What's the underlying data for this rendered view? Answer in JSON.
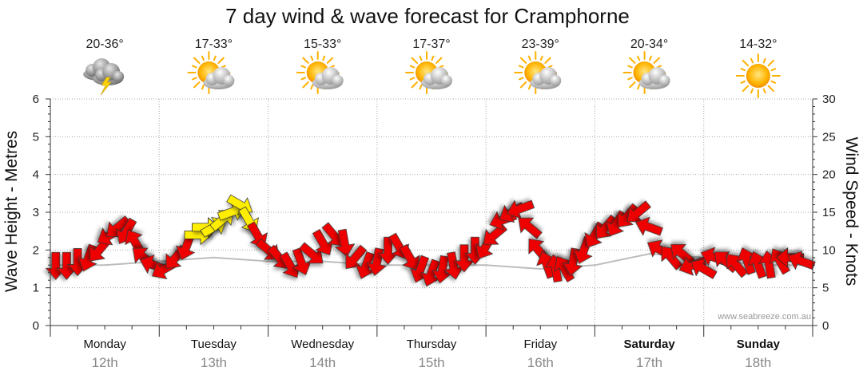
{
  "chart_data": {
    "type": "line",
    "title": "7 day wind & wave forecast for Cramphorne",
    "ylabel_left": "Wave Height - Metres",
    "ylabel_right": "Wind Speed - Knots",
    "ylim_left": [
      0,
      6
    ],
    "ylim_right": [
      0,
      30
    ],
    "left_ticks": [
      "0",
      "1",
      "2",
      "3",
      "4",
      "5",
      "6"
    ],
    "right_ticks": [
      "0",
      "5",
      "10",
      "15",
      "20",
      "25",
      "30"
    ],
    "watermark": "www.seabreeze.com.au",
    "days": [
      {
        "day": "Monday",
        "date": "12th",
        "bold": false,
        "temp": "20-36°",
        "icon": "storm-cloud-icon"
      },
      {
        "day": "Tuesday",
        "date": "13th",
        "bold": false,
        "temp": "17-33°",
        "icon": "partly-cloudy-icon"
      },
      {
        "day": "Wednesday",
        "date": "14th",
        "bold": false,
        "temp": "15-33°",
        "icon": "partly-cloudy-icon"
      },
      {
        "day": "Thursday",
        "date": "15th",
        "bold": false,
        "temp": "17-37°",
        "icon": "partly-cloudy-icon"
      },
      {
        "day": "Friday",
        "date": "16th",
        "bold": false,
        "temp": "23-39°",
        "icon": "partly-cloudy-icon"
      },
      {
        "day": "Saturday",
        "date": "17th",
        "bold": true,
        "temp": "20-34°",
        "icon": "partly-cloudy-icon"
      },
      {
        "day": "Sunday",
        "date": "18th",
        "bold": true,
        "temp": "14-32°",
        "icon": "sunny-icon"
      }
    ],
    "wind_arrow_colors": {
      "light": "#ffee00",
      "strong": "#ee0000"
    },
    "wave_height_series": {
      "name": "Wave Height (m)",
      "x": [
        0,
        0.5,
        1.0,
        1.5,
        2.0,
        2.5,
        3.0,
        3.5,
        4.0,
        4.5,
        5.0,
        5.5,
        6.0,
        6.5,
        7.0
      ],
      "values": [
        1.6,
        1.6,
        1.7,
        1.8,
        1.7,
        1.7,
        1.6,
        1.6,
        1.6,
        1.5,
        1.6,
        1.9,
        1.8,
        1.6,
        1.6
      ]
    },
    "wind_series": {
      "name": "Wind",
      "x": [
        0.05,
        0.15,
        0.25,
        0.35,
        0.45,
        0.55,
        0.62,
        0.7,
        0.78,
        0.86,
        0.95,
        1.05,
        1.15,
        1.25,
        1.35,
        1.42,
        1.5,
        1.58,
        1.66,
        1.74,
        1.82,
        1.9,
        2.0,
        2.1,
        2.2,
        2.3,
        2.4,
        2.5,
        2.6,
        2.7,
        2.8,
        2.9,
        3.0,
        3.1,
        3.2,
        3.3,
        3.4,
        3.5,
        3.6,
        3.7,
        3.8,
        3.9,
        4.0,
        4.08,
        4.16,
        4.24,
        4.32,
        4.4,
        4.48,
        4.56,
        4.64,
        4.72,
        4.8,
        4.9,
        5.0,
        5.1,
        5.2,
        5.3,
        5.4,
        5.5,
        5.6,
        5.7,
        5.8,
        5.9,
        6.0,
        6.1,
        6.2,
        6.3,
        6.4,
        6.5,
        6.6,
        6.7,
        6.8,
        6.9
      ],
      "knots": [
        8,
        8,
        8.5,
        9,
        10,
        12,
        13,
        12.5,
        11,
        9,
        8,
        7.5,
        9,
        10.5,
        12,
        13,
        13,
        14,
        15,
        16,
        14,
        12,
        10,
        9,
        8,
        8.5,
        9.5,
        11,
        12,
        11,
        9,
        8,
        8.5,
        10,
        10.5,
        9,
        7.5,
        7,
        7.5,
        8,
        9,
        10,
        10.5,
        12,
        14,
        15,
        15.5,
        13,
        10,
        8,
        7.5,
        7.5,
        8.5,
        10,
        12,
        13,
        13.5,
        14.5,
        15,
        13,
        10,
        9,
        9.5,
        8,
        7.5,
        9,
        8.5,
        8,
        8.5,
        8,
        8,
        8.5,
        9,
        8.5
      ],
      "direction_deg": [
        270,
        270,
        270,
        250,
        230,
        210,
        220,
        240,
        120,
        140,
        160,
        210,
        230,
        250,
        0,
        0,
        30,
        40,
        20,
        330,
        300,
        300,
        320,
        310,
        300,
        290,
        320,
        300,
        310,
        280,
        230,
        250,
        260,
        270,
        300,
        300,
        250,
        250,
        260,
        280,
        270,
        270,
        240,
        220,
        200,
        210,
        200,
        140,
        130,
        110,
        100,
        120,
        260,
        250,
        240,
        230,
        240,
        230,
        220,
        160,
        150,
        130,
        140,
        200,
        150,
        160,
        140,
        130,
        110,
        110,
        100,
        120,
        180,
        160
      ]
    }
  }
}
